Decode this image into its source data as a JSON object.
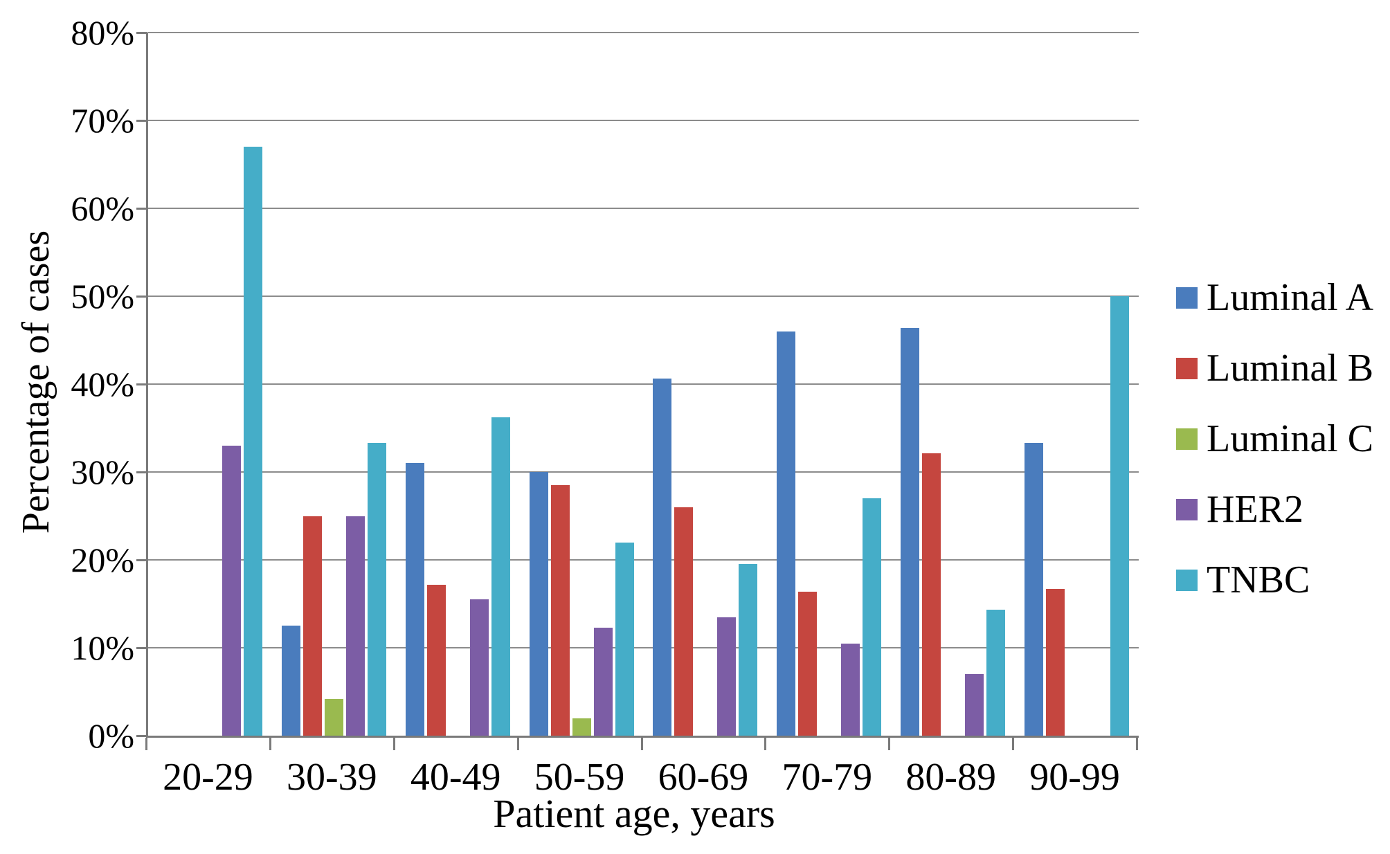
{
  "chart_data": {
    "type": "bar",
    "title": "",
    "xlabel": "Patient age, years",
    "ylabel": "Percentage of cases",
    "categories": [
      "20-29",
      "30-39",
      "40-49",
      "50-59",
      "60-69",
      "70-79",
      "80-89",
      "90-99"
    ],
    "series": [
      {
        "name": "Luminal A",
        "color": "#4A7CBD",
        "values": [
          0,
          12.5,
          31,
          30,
          40.6,
          46,
          46.4,
          33.3
        ]
      },
      {
        "name": "Luminal B",
        "color": "#C5463F",
        "values": [
          0,
          25,
          17.2,
          28.5,
          26,
          16.4,
          32.1,
          16.7
        ]
      },
      {
        "name": "Luminal C",
        "color": "#9ABA4F",
        "values": [
          0,
          4.2,
          0,
          2,
          0,
          0,
          0,
          0
        ]
      },
      {
        "name": "HER2",
        "color": "#7C5DA5",
        "values": [
          33,
          25,
          15.5,
          12.3,
          13.5,
          10.5,
          7,
          0
        ]
      },
      {
        "name": "TNBC",
        "color": "#45ADC8",
        "values": [
          67,
          33.3,
          36.2,
          22,
          19.5,
          27,
          14.3,
          50
        ]
      }
    ],
    "ylim": [
      0,
      80
    ],
    "ytick_step": 10,
    "ytick_labels": [
      "0%",
      "10%",
      "20%",
      "30%",
      "40%",
      "50%",
      "60%",
      "70%",
      "80%"
    ],
    "grid": "horizontal",
    "legend_position": "right"
  },
  "colors": {
    "gridline": "#8C8C8C",
    "axis": "#7A7A7A",
    "text": "#000000"
  }
}
